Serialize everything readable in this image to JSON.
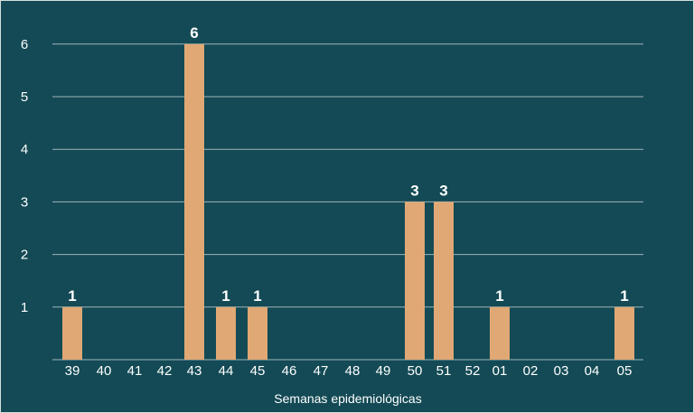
{
  "chart_data": {
    "type": "bar",
    "xlabel": "Semanas epidemiológicas",
    "ylabel": "",
    "title": "",
    "categories": [
      "39",
      "40",
      "41",
      "42",
      "43",
      "44",
      "45",
      "46",
      "47",
      "48",
      "49",
      "50",
      "51",
      "52",
      "01",
      "02",
      "03",
      "04",
      "05"
    ],
    "values": [
      1,
      0,
      0,
      0,
      6,
      1,
      1,
      0,
      0,
      0,
      0,
      3,
      3,
      0,
      1,
      0,
      0,
      0,
      1
    ],
    "ylim": [
      0,
      6
    ],
    "yticks": [
      1,
      2,
      3,
      4,
      5,
      6
    ],
    "grid": true,
    "data_labels": true,
    "legend": "none"
  },
  "colors": {
    "background": "#134a55",
    "bar": "#e0a874",
    "gridline": "#9fb4b8",
    "text": "#ffffff"
  }
}
